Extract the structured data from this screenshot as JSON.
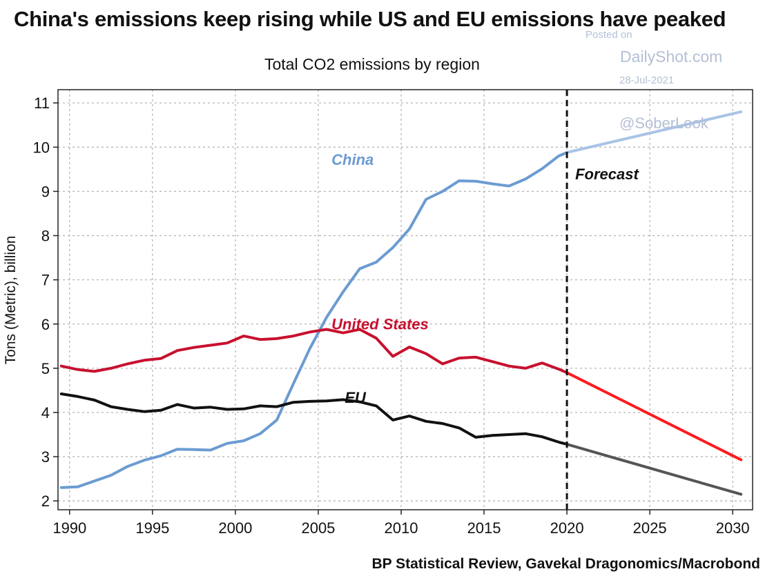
{
  "title": "China's emissions keep rising while US and EU emissions have peaked",
  "subtitle": "Total CO2 emissions by region",
  "source": "BP Statistical Review, Gavekal Dragonomics/Macrobond",
  "watermark": {
    "posted": "Posted on",
    "site": "DailyShot.com",
    "date": "28-Jul-2021",
    "handle": "@SoberLook"
  },
  "chart_data": {
    "type": "line",
    "title": "Total CO2 emissions by region",
    "xlabel": "",
    "ylabel": "Tons (Metric), billion",
    "xlim": [
      1989.3,
      2031.2
    ],
    "ylim": [
      1.8,
      11.3
    ],
    "xticks": [
      1990,
      1995,
      2000,
      2005,
      2010,
      2015,
      2020,
      2025,
      2030
    ],
    "yticks": [
      2,
      3,
      4,
      5,
      6,
      7,
      8,
      9,
      10,
      11
    ],
    "grid": true,
    "forecast_line": {
      "x": 2020,
      "label": "Forecast"
    },
    "series": [
      {
        "name": "China",
        "color": "#6b9bd2",
        "forecast_color": "#a9c3e6",
        "x": [
          1989.5,
          1990.5,
          1991.5,
          1992.5,
          1993.5,
          1994.5,
          1995.5,
          1996.5,
          1997.5,
          1998.5,
          1999.5,
          2000.5,
          2001.5,
          2002.5,
          2003.5,
          2004.5,
          2005.5,
          2006.5,
          2007.5,
          2008.5,
          2009.5,
          2010.5,
          2011.5,
          2012.5,
          2013.5,
          2014.5,
          2015.5,
          2016.5,
          2017.5,
          2018.5,
          2019.5,
          2020.0
        ],
        "y": [
          2.3,
          2.32,
          2.45,
          2.58,
          2.78,
          2.92,
          3.02,
          3.17,
          3.16,
          3.15,
          3.3,
          3.36,
          3.52,
          3.83,
          4.65,
          5.45,
          6.15,
          6.73,
          7.25,
          7.4,
          7.73,
          8.15,
          8.82,
          9.0,
          9.24,
          9.23,
          9.17,
          9.12,
          9.28,
          9.51,
          9.8,
          9.88
        ],
        "forecast_x": [
          2020.0,
          2030.5
        ],
        "forecast_y": [
          9.88,
          10.8
        ]
      },
      {
        "name": "United States",
        "color": "#c8102e",
        "forecast_color": "#ff1a1a",
        "x": [
          1989.5,
          1990.5,
          1991.5,
          1992.5,
          1993.5,
          1994.5,
          1995.5,
          1996.5,
          1997.5,
          1998.5,
          1999.5,
          2000.5,
          2001.5,
          2002.5,
          2003.5,
          2004.5,
          2005.5,
          2006.5,
          2007.5,
          2008.5,
          2009.5,
          2010.5,
          2011.5,
          2012.5,
          2013.5,
          2014.5,
          2015.5,
          2016.5,
          2017.5,
          2018.5,
          2019.5,
          2020.0
        ],
        "y": [
          5.05,
          4.97,
          4.93,
          5.0,
          5.1,
          5.18,
          5.22,
          5.4,
          5.47,
          5.52,
          5.57,
          5.73,
          5.65,
          5.67,
          5.73,
          5.82,
          5.88,
          5.8,
          5.88,
          5.68,
          5.27,
          5.48,
          5.33,
          5.1,
          5.23,
          5.25,
          5.15,
          5.05,
          5.0,
          5.12,
          4.98,
          4.9
        ],
        "forecast_x": [
          2020.0,
          2030.5
        ],
        "forecast_y": [
          4.9,
          2.93
        ]
      },
      {
        "name": "EU",
        "color": "#111111",
        "forecast_color": "#555555",
        "x": [
          1989.5,
          1990.5,
          1991.5,
          1992.5,
          1993.5,
          1994.5,
          1995.5,
          1996.5,
          1997.5,
          1998.5,
          1999.5,
          2000.5,
          2001.5,
          2002.5,
          2003.5,
          2004.5,
          2005.5,
          2006.5,
          2007.5,
          2008.5,
          2009.5,
          2010.5,
          2011.5,
          2012.5,
          2013.5,
          2014.5,
          2015.5,
          2016.5,
          2017.5,
          2018.5,
          2019.5,
          2020.0
        ],
        "y": [
          4.42,
          4.36,
          4.28,
          4.13,
          4.07,
          4.02,
          4.05,
          4.18,
          4.1,
          4.12,
          4.07,
          4.08,
          4.15,
          4.13,
          4.23,
          4.25,
          4.26,
          4.29,
          4.24,
          4.15,
          3.83,
          3.92,
          3.8,
          3.75,
          3.65,
          3.44,
          3.48,
          3.5,
          3.52,
          3.45,
          3.33,
          3.28
        ],
        "forecast_x": [
          2020.0,
          2030.5
        ],
        "forecast_y": [
          3.28,
          2.15
        ]
      }
    ]
  }
}
